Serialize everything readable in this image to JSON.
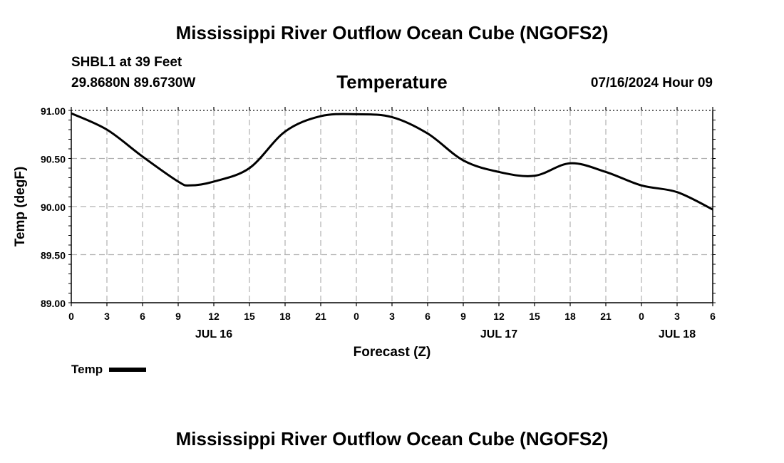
{
  "page": {
    "title_top": "Mississippi River Outflow Ocean Cube (NGOFS2)",
    "title_bottom": "Mississippi River Outflow Ocean Cube (NGOFS2)",
    "station": "SHBL1 at 39 Feet",
    "coords": "29.8680N  89.6730W",
    "timestamp": "07/16/2024 Hour 09"
  },
  "chart_data": {
    "type": "line",
    "title": "Temperature",
    "xlabel": "Forecast (Z)",
    "ylabel": "Temp (degF)",
    "x_unit": "hours from JUL 16 00Z",
    "xlim": [
      0,
      54
    ],
    "ylim": [
      89.0,
      91.0
    ],
    "yticks": [
      89.0,
      89.5,
      90.0,
      90.5,
      91.0
    ],
    "ytick_labels": [
      "89.00",
      "89.50",
      "90.00",
      "90.50",
      "91.00"
    ],
    "xticks": [
      0,
      3,
      6,
      9,
      12,
      15,
      18,
      21,
      24,
      27,
      30,
      33,
      36,
      39,
      42,
      45,
      48,
      51,
      54
    ],
    "xtick_labels": [
      "0",
      "3",
      "6",
      "9",
      "12",
      "15",
      "18",
      "21",
      "0",
      "3",
      "6",
      "9",
      "12",
      "15",
      "18",
      "21",
      "0",
      "3",
      "6"
    ],
    "day_labels": [
      {
        "x": 12,
        "label": "JUL 16"
      },
      {
        "x": 36,
        "label": "JUL 17"
      },
      {
        "x": 51,
        "label": "JUL 18"
      }
    ],
    "grid": true,
    "legend": {
      "position": "bottom-left",
      "entries": [
        "Temp"
      ]
    },
    "series": [
      {
        "name": "Temp",
        "x": [
          0,
          3,
          6,
          9,
          10,
          12,
          15,
          18,
          21,
          24,
          27,
          30,
          33,
          36,
          39,
          42,
          45,
          48,
          51,
          54
        ],
        "values": [
          90.97,
          90.8,
          90.52,
          90.26,
          90.22,
          90.26,
          90.4,
          90.78,
          90.94,
          90.96,
          90.93,
          90.76,
          90.48,
          90.36,
          90.32,
          90.45,
          90.36,
          90.22,
          90.15,
          89.97
        ]
      }
    ]
  }
}
